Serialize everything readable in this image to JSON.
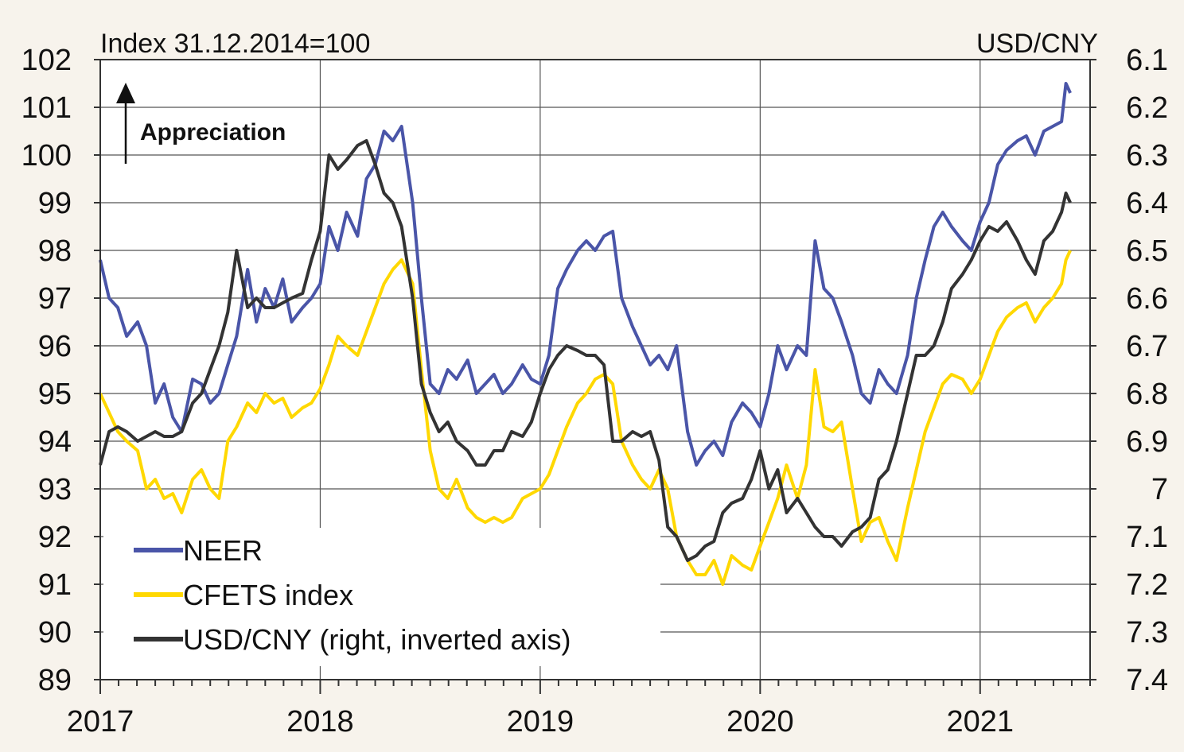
{
  "chart_data": {
    "type": "line",
    "left_axis_title": "Index 31.12.2014=100",
    "right_axis_title": "USD/CNY",
    "annotation": "Appreciation",
    "y_left": {
      "min": 89,
      "max": 102,
      "ticks": [
        "102",
        "101",
        "100",
        "99",
        "98",
        "97",
        "96",
        "95",
        "94",
        "93",
        "92",
        "91",
        "90",
        "89"
      ]
    },
    "y_right": {
      "min": 6.1,
      "max": 7.4,
      "inverted": true,
      "ticks": [
        "6.1",
        "6.2",
        "6.3",
        "6.4",
        "6.5",
        "6.6",
        "6.7",
        "6.8",
        "6.9",
        "7",
        "7.1",
        "7.2",
        "7.3",
        "7.4"
      ]
    },
    "x_axis": {
      "min": 2017.0,
      "max": 2021.5,
      "ticks": [
        "2017",
        "2018",
        "2019",
        "2020",
        "2021"
      ],
      "grid": true
    },
    "legend": {
      "placement": "bottom-left"
    },
    "series": [
      {
        "name": "NEER",
        "axis": "left",
        "color": "#4a55a8",
        "x": [
          2017.0,
          2017.04,
          2017.08,
          2017.12,
          2017.17,
          2017.21,
          2017.25,
          2017.29,
          2017.33,
          2017.37,
          2017.42,
          2017.46,
          2017.5,
          2017.54,
          2017.58,
          2017.62,
          2017.67,
          2017.71,
          2017.75,
          2017.79,
          2017.83,
          2017.87,
          2017.92,
          2017.96,
          2018.0,
          2018.04,
          2018.08,
          2018.12,
          2018.17,
          2018.21,
          2018.25,
          2018.29,
          2018.33,
          2018.37,
          2018.42,
          2018.46,
          2018.5,
          2018.54,
          2018.58,
          2018.62,
          2018.67,
          2018.71,
          2018.75,
          2018.79,
          2018.83,
          2018.87,
          2018.92,
          2018.96,
          2019.0,
          2019.04,
          2019.08,
          2019.12,
          2019.17,
          2019.21,
          2019.25,
          2019.29,
          2019.33,
          2019.37,
          2019.42,
          2019.46,
          2019.5,
          2019.54,
          2019.58,
          2019.62,
          2019.67,
          2019.71,
          2019.75,
          2019.79,
          2019.83,
          2019.87,
          2019.92,
          2019.96,
          2020.0,
          2020.04,
          2020.08,
          2020.12,
          2020.17,
          2020.21,
          2020.25,
          2020.29,
          2020.33,
          2020.37,
          2020.42,
          2020.46,
          2020.5,
          2020.54,
          2020.58,
          2020.62,
          2020.67,
          2020.71,
          2020.75,
          2020.79,
          2020.83,
          2020.87,
          2020.92,
          2020.96,
          2021.0,
          2021.04,
          2021.08,
          2021.12,
          2021.17,
          2021.21,
          2021.25,
          2021.29,
          2021.33,
          2021.37,
          2021.39,
          2021.41
        ],
        "y": [
          97.8,
          97.0,
          96.8,
          96.2,
          96.5,
          96.0,
          94.8,
          95.2,
          94.5,
          94.2,
          95.3,
          95.2,
          94.8,
          95.0,
          95.6,
          96.2,
          97.6,
          96.5,
          97.2,
          96.8,
          97.4,
          96.5,
          96.8,
          97.0,
          97.3,
          98.5,
          98.0,
          98.8,
          98.3,
          99.5,
          99.8,
          100.5,
          100.3,
          100.6,
          99.0,
          97.0,
          95.2,
          95.0,
          95.5,
          95.3,
          95.7,
          95.0,
          95.2,
          95.4,
          95.0,
          95.2,
          95.6,
          95.3,
          95.2,
          95.8,
          97.2,
          97.6,
          98.0,
          98.2,
          98.0,
          98.3,
          98.4,
          97.0,
          96.4,
          96.0,
          95.6,
          95.8,
          95.5,
          96.0,
          94.2,
          93.5,
          93.8,
          94.0,
          93.7,
          94.4,
          94.8,
          94.6,
          94.3,
          95.0,
          96.0,
          95.5,
          96.0,
          95.8,
          98.2,
          97.2,
          97.0,
          96.5,
          95.8,
          95.0,
          94.8,
          95.5,
          95.2,
          95.0,
          95.8,
          97.0,
          97.8,
          98.5,
          98.8,
          98.5,
          98.2,
          98.0,
          98.6,
          99.0,
          99.8,
          100.1,
          100.3,
          100.4,
          100.0,
          100.5,
          100.6,
          100.7,
          101.5,
          101.3
        ]
      },
      {
        "name": "CFETS index",
        "axis": "left",
        "color": "#ffd800",
        "x": [
          2017.0,
          2017.04,
          2017.08,
          2017.12,
          2017.17,
          2017.21,
          2017.25,
          2017.29,
          2017.33,
          2017.37,
          2017.42,
          2017.46,
          2017.5,
          2017.54,
          2017.58,
          2017.62,
          2017.67,
          2017.71,
          2017.75,
          2017.79,
          2017.83,
          2017.87,
          2017.92,
          2017.96,
          2018.0,
          2018.04,
          2018.08,
          2018.12,
          2018.17,
          2018.21,
          2018.25,
          2018.29,
          2018.33,
          2018.37,
          2018.42,
          2018.46,
          2018.5,
          2018.54,
          2018.58,
          2018.62,
          2018.67,
          2018.71,
          2018.75,
          2018.79,
          2018.83,
          2018.87,
          2018.92,
          2018.96,
          2019.0,
          2019.04,
          2019.08,
          2019.12,
          2019.17,
          2019.21,
          2019.25,
          2019.29,
          2019.33,
          2019.37,
          2019.42,
          2019.46,
          2019.5,
          2019.54,
          2019.58,
          2019.62,
          2019.67,
          2019.71,
          2019.75,
          2019.79,
          2019.83,
          2019.87,
          2019.92,
          2019.96,
          2020.0,
          2020.04,
          2020.08,
          2020.12,
          2020.17,
          2020.21,
          2020.25,
          2020.29,
          2020.33,
          2020.37,
          2020.42,
          2020.46,
          2020.5,
          2020.54,
          2020.58,
          2020.62,
          2020.67,
          2020.71,
          2020.75,
          2020.79,
          2020.83,
          2020.87,
          2020.92,
          2020.96,
          2021.0,
          2021.04,
          2021.08,
          2021.12,
          2021.17,
          2021.21,
          2021.25,
          2021.29,
          2021.33,
          2021.37,
          2021.39,
          2021.41
        ],
        "y": [
          95.0,
          94.6,
          94.2,
          94.0,
          93.8,
          93.0,
          93.2,
          92.8,
          92.9,
          92.5,
          93.2,
          93.4,
          93.0,
          92.8,
          94.0,
          94.3,
          94.8,
          94.6,
          95.0,
          94.8,
          94.9,
          94.5,
          94.7,
          94.8,
          95.1,
          95.6,
          96.2,
          96.0,
          95.8,
          96.3,
          96.8,
          97.3,
          97.6,
          97.8,
          97.3,
          95.5,
          93.8,
          93.0,
          92.8,
          93.2,
          92.6,
          92.4,
          92.3,
          92.4,
          92.3,
          92.4,
          92.8,
          92.9,
          93.0,
          93.3,
          93.8,
          94.3,
          94.8,
          95.0,
          95.3,
          95.4,
          95.2,
          94.0,
          93.5,
          93.2,
          93.0,
          93.4,
          93.0,
          92.0,
          91.5,
          91.2,
          91.2,
          91.5,
          91.0,
          91.6,
          91.4,
          91.3,
          91.8,
          92.3,
          92.8,
          93.5,
          92.8,
          93.5,
          95.5,
          94.3,
          94.2,
          94.4,
          93.0,
          91.9,
          92.3,
          92.4,
          91.9,
          91.5,
          92.6,
          93.4,
          94.2,
          94.7,
          95.2,
          95.4,
          95.3,
          95.0,
          95.3,
          95.8,
          96.3,
          96.6,
          96.8,
          96.9,
          96.5,
          96.8,
          97.0,
          97.3,
          97.8,
          98.0
        ]
      },
      {
        "name": "USD/CNY (right, inverted axis)",
        "axis": "right",
        "color": "#333333",
        "x": [
          2017.0,
          2017.04,
          2017.08,
          2017.12,
          2017.17,
          2017.21,
          2017.25,
          2017.29,
          2017.33,
          2017.37,
          2017.42,
          2017.46,
          2017.5,
          2017.54,
          2017.58,
          2017.62,
          2017.67,
          2017.71,
          2017.75,
          2017.79,
          2017.83,
          2017.87,
          2017.92,
          2017.96,
          2018.0,
          2018.04,
          2018.08,
          2018.12,
          2018.17,
          2018.21,
          2018.25,
          2018.29,
          2018.33,
          2018.37,
          2018.42,
          2018.46,
          2018.5,
          2018.54,
          2018.58,
          2018.62,
          2018.67,
          2018.71,
          2018.75,
          2018.79,
          2018.83,
          2018.87,
          2018.92,
          2018.96,
          2019.0,
          2019.04,
          2019.08,
          2019.12,
          2019.17,
          2019.21,
          2019.25,
          2019.29,
          2019.33,
          2019.37,
          2019.42,
          2019.46,
          2019.5,
          2019.54,
          2019.58,
          2019.62,
          2019.67,
          2019.71,
          2019.75,
          2019.79,
          2019.83,
          2019.87,
          2019.92,
          2019.96,
          2020.0,
          2020.04,
          2020.08,
          2020.12,
          2020.17,
          2020.21,
          2020.25,
          2020.29,
          2020.33,
          2020.37,
          2020.42,
          2020.46,
          2020.5,
          2020.54,
          2020.58,
          2020.62,
          2020.67,
          2020.71,
          2020.75,
          2020.79,
          2020.83,
          2020.87,
          2020.92,
          2020.96,
          2021.0,
          2021.04,
          2021.08,
          2021.12,
          2021.17,
          2021.21,
          2021.25,
          2021.29,
          2021.33,
          2021.37,
          2021.39,
          2021.41
        ],
        "y": [
          6.95,
          6.88,
          6.87,
          6.88,
          6.9,
          6.89,
          6.88,
          6.89,
          6.89,
          6.88,
          6.82,
          6.8,
          6.75,
          6.7,
          6.63,
          6.5,
          6.62,
          6.6,
          6.62,
          6.62,
          6.61,
          6.6,
          6.59,
          6.52,
          6.46,
          6.3,
          6.33,
          6.31,
          6.28,
          6.27,
          6.32,
          6.38,
          6.4,
          6.45,
          6.6,
          6.78,
          6.84,
          6.88,
          6.86,
          6.9,
          6.92,
          6.95,
          6.95,
          6.92,
          6.92,
          6.88,
          6.89,
          6.86,
          6.8,
          6.75,
          6.72,
          6.7,
          6.71,
          6.72,
          6.72,
          6.74,
          6.9,
          6.9,
          6.88,
          6.89,
          6.88,
          6.94,
          7.08,
          7.1,
          7.15,
          7.14,
          7.12,
          7.11,
          7.05,
          7.03,
          7.02,
          6.98,
          6.92,
          7.0,
          6.96,
          7.05,
          7.02,
          7.05,
          7.08,
          7.1,
          7.1,
          7.12,
          7.09,
          7.08,
          7.06,
          6.98,
          6.96,
          6.9,
          6.8,
          6.72,
          6.72,
          6.7,
          6.65,
          6.58,
          6.55,
          6.52,
          6.48,
          6.45,
          6.46,
          6.44,
          6.48,
          6.52,
          6.55,
          6.48,
          6.46,
          6.42,
          6.38,
          6.4
        ]
      }
    ]
  }
}
